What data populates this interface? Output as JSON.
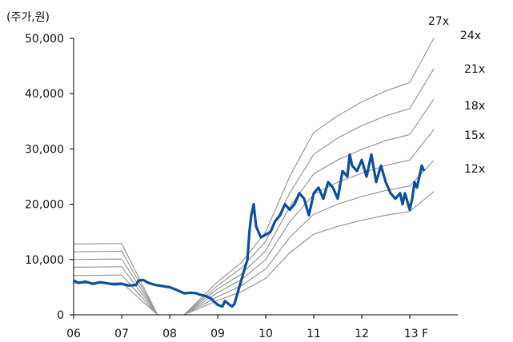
{
  "chart_data": {
    "type": "line",
    "unit_label": "(주가,원)",
    "y_ticks": [
      "50,000",
      "40,000",
      "30,000",
      "20,000",
      "10,000",
      "0"
    ],
    "x_ticks": [
      "06",
      "07",
      "08",
      "09",
      "10",
      "11",
      "12",
      "13 F"
    ],
    "ylim": [
      0,
      50000
    ],
    "colors": {
      "price": "#0d4f9c",
      "band": "#9a9a9a",
      "axis": "#000000"
    },
    "price_series": {
      "x": [
        2006.0,
        2006.1,
        2006.25,
        2006.4,
        2006.55,
        2006.7,
        2006.85,
        2007.0,
        2007.15,
        2007.3,
        2007.35,
        2007.45,
        2007.55,
        2007.7,
        2007.85,
        2008.0,
        2008.15,
        2008.3,
        2008.45,
        2008.55,
        2008.65,
        2008.75,
        2008.85,
        2008.95,
        2009.0,
        2009.1,
        2009.15,
        2009.25,
        2009.3,
        2009.35,
        2009.45,
        2009.55,
        2009.62,
        2009.66,
        2009.7,
        2009.75,
        2009.8,
        2009.85,
        2009.9,
        2010.0,
        2010.1,
        2010.2,
        2010.3,
        2010.4,
        2010.5,
        2010.6,
        2010.7,
        2010.8,
        2010.9,
        2011.0,
        2011.1,
        2011.2,
        2011.3,
        2011.4,
        2011.5,
        2011.6,
        2011.7,
        2011.75,
        2011.8,
        2011.9,
        2012.0,
        2012.1,
        2012.2,
        2012.3,
        2012.4,
        2012.5,
        2012.6,
        2012.7,
        2012.8,
        2012.85,
        2012.9,
        2013.0,
        2013.05,
        2013.1,
        2013.15,
        2013.2,
        2013.25,
        2013.3
      ],
      "y": [
        6200,
        5800,
        6000,
        5600,
        5900,
        5700,
        5500,
        5600,
        5300,
        5400,
        6200,
        6300,
        5800,
        5400,
        5200,
        5000,
        4500,
        3900,
        4000,
        3900,
        3600,
        3400,
        3000,
        2200,
        1800,
        1500,
        2500,
        1800,
        1500,
        2000,
        5000,
        8000,
        10000,
        15000,
        18000,
        20000,
        16000,
        15000,
        14000,
        14500,
        15000,
        17000,
        18000,
        20000,
        19000,
        20000,
        22000,
        21000,
        18000,
        22000,
        23000,
        21000,
        24000,
        23000,
        21000,
        26000,
        25000,
        29000,
        27000,
        26000,
        28000,
        25000,
        29000,
        24000,
        27000,
        24000,
        22000,
        21000,
        22000,
        20000,
        22000,
        19000,
        21000,
        24000,
        23000,
        25000,
        27000,
        26000
      ]
    },
    "bands": [
      {
        "label": "27x",
        "x": [
          2006.0,
          2007.0,
          2007.75,
          2007.75,
          2008.3,
          2008.3,
          2009.0,
          2009.5,
          2010.0,
          2010.5,
          2011.0,
          2011.5,
          2012.0,
          2012.5,
          2013.0,
          2013.5
        ],
        "y": [
          12800,
          12900,
          0,
          null,
          null,
          0,
          6000,
          9500,
          15000,
          25000,
          33000,
          36000,
          38500,
          40500,
          42000,
          50000
        ]
      },
      {
        "label": "24x",
        "x": [
          2006.0,
          2007.0,
          2007.75,
          2007.75,
          2008.3,
          2008.3,
          2009.0,
          2009.5,
          2010.0,
          2010.5,
          2011.0,
          2011.5,
          2012.0,
          2012.5,
          2013.0,
          2013.5
        ],
        "y": [
          11400,
          11500,
          0,
          null,
          null,
          0,
          5300,
          8500,
          13300,
          22000,
          29000,
          32000,
          34200,
          36000,
          37300,
          44500
        ]
      },
      {
        "label": "21x",
        "x": [
          2006.0,
          2007.0,
          2007.75,
          2007.75,
          2008.3,
          2008.3,
          2009.0,
          2009.5,
          2010.0,
          2010.5,
          2011.0,
          2011.5,
          2012.0,
          2012.5,
          2013.0,
          2013.5
        ],
        "y": [
          10000,
          10100,
          0,
          null,
          null,
          0,
          4700,
          7400,
          11600,
          19500,
          25500,
          28000,
          29900,
          31500,
          32600,
          39000
        ]
      },
      {
        "label": "18x",
        "x": [
          2006.0,
          2007.0,
          2007.75,
          2007.75,
          2008.3,
          2008.3,
          2009.0,
          2009.5,
          2010.0,
          2010.5,
          2011.0,
          2011.5,
          2012.0,
          2012.5,
          2013.0,
          2013.5
        ],
        "y": [
          8600,
          8700,
          0,
          null,
          null,
          0,
          4000,
          6400,
          10000,
          16800,
          21800,
          24000,
          25600,
          27000,
          28000,
          33500
        ]
      },
      {
        "label": "15x",
        "x": [
          2006.0,
          2007.0,
          2007.75,
          2007.75,
          2008.3,
          2008.3,
          2009.0,
          2009.5,
          2010.0,
          2010.5,
          2011.0,
          2011.5,
          2012.0,
          2012.5,
          2013.0,
          2013.5
        ],
        "y": [
          7100,
          7200,
          0,
          null,
          null,
          0,
          3300,
          5300,
          8300,
          14000,
          18200,
          20000,
          21400,
          22500,
          23300,
          27900
        ]
      },
      {
        "label": "12x",
        "x": [
          2006.0,
          2007.0,
          2007.75,
          2007.75,
          2008.3,
          2008.3,
          2009.0,
          2009.5,
          2010.0,
          2010.5,
          2011.0,
          2011.5,
          2012.0,
          2012.5,
          2013.0,
          2013.5
        ],
        "y": [
          5700,
          5800,
          0,
          null,
          null,
          0,
          2600,
          4200,
          6600,
          11200,
          14600,
          16000,
          17100,
          18000,
          18700,
          22300
        ]
      }
    ]
  }
}
